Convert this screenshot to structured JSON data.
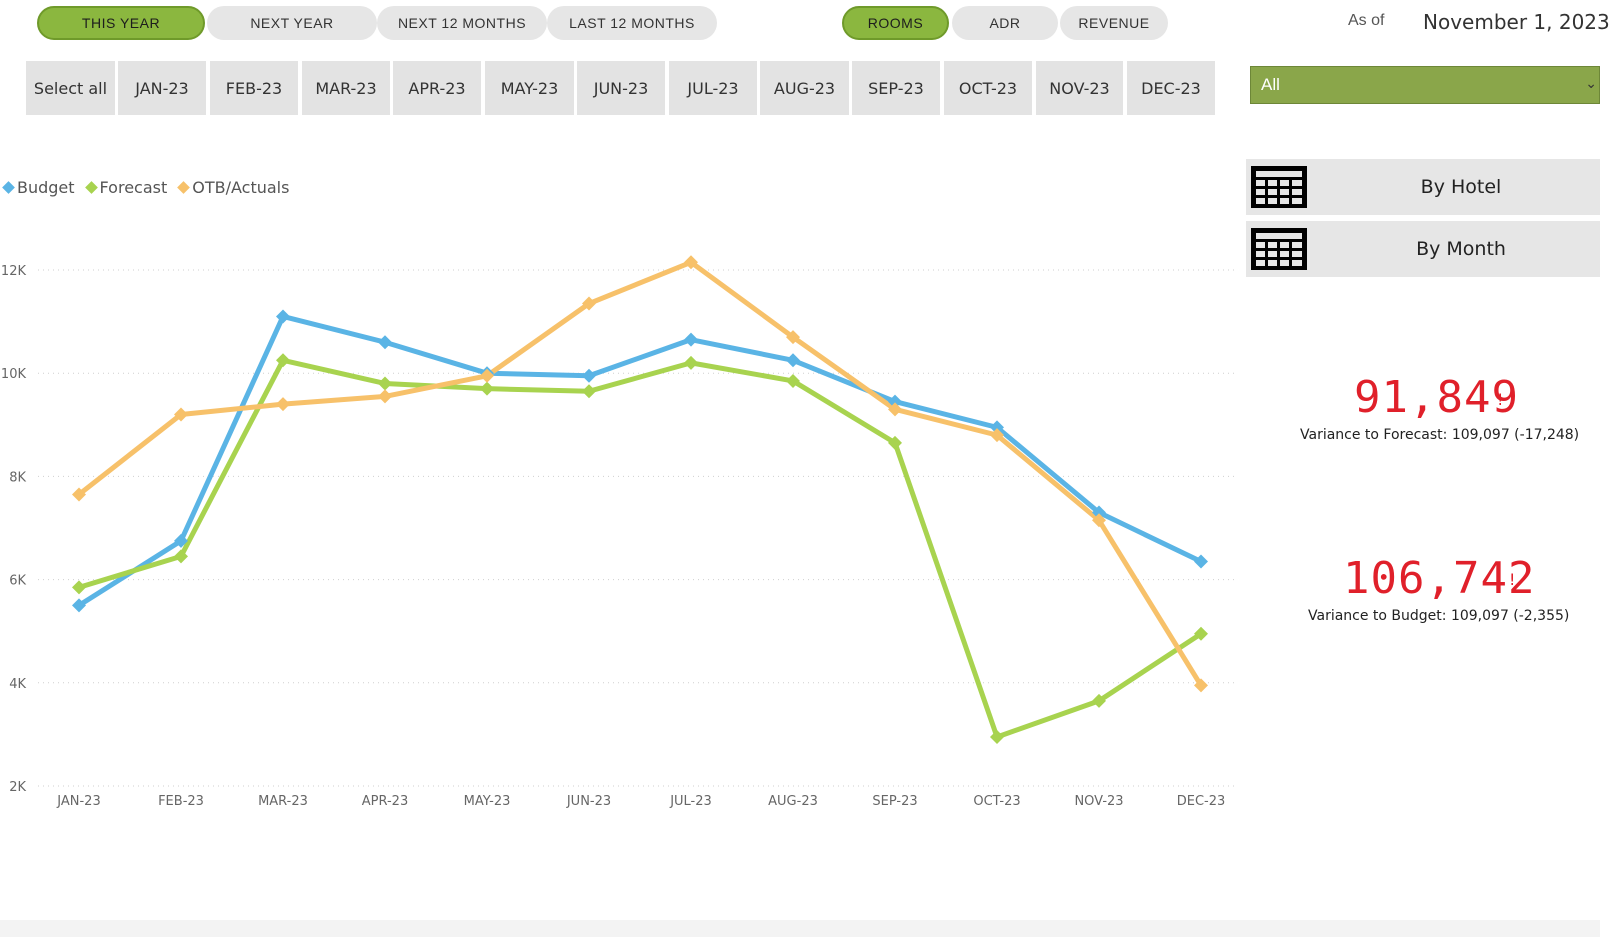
{
  "period_tabs": [
    {
      "label": "THIS YEAR",
      "active": true
    },
    {
      "label": "NEXT YEAR",
      "active": false
    },
    {
      "label": "NEXT 12 MONTHS",
      "active": false
    },
    {
      "label": "LAST 12 MONTHS",
      "active": false
    }
  ],
  "metric_tabs": [
    {
      "label": "ROOMS",
      "active": true
    },
    {
      "label": "ADR",
      "active": false
    },
    {
      "label": "REVENUE",
      "active": false
    }
  ],
  "as_of": {
    "label": "As of",
    "date": "November 1, 2023"
  },
  "months_slicer": [
    "Select all",
    "JAN-23",
    "FEB-23",
    "MAR-23",
    "APR-23",
    "MAY-23",
    "JUN-23",
    "JUL-23",
    "AUG-23",
    "SEP-23",
    "OCT-23",
    "NOV-23",
    "DEC-23"
  ],
  "hotel_dropdown": {
    "value": "All"
  },
  "nav_buttons": [
    {
      "label": "By Hotel",
      "icon": "table-icon"
    },
    {
      "label": "By Month",
      "icon": "table-icon"
    }
  ],
  "kpis": [
    {
      "value": "91,849",
      "mark": "!",
      "subtitle": "Variance to Forecast: 109,097 (-17,248)"
    },
    {
      "value": "106,742",
      "mark": "!",
      "subtitle": "Variance to Budget: 109,097 (-2,355)"
    }
  ],
  "colors": {
    "budget": "#5ab4e5",
    "forecast": "#a8d34f",
    "otb": "#f7c16a",
    "accent": "#8bb73f",
    "kpi": "#e0202a"
  },
  "chart_data": {
    "type": "line",
    "categories": [
      "JAN-23",
      "FEB-23",
      "MAR-23",
      "APR-23",
      "MAY-23",
      "JUN-23",
      "JUL-23",
      "AUG-23",
      "SEP-23",
      "OCT-23",
      "NOV-23",
      "DEC-23"
    ],
    "series": [
      {
        "name": "Budget",
        "color": "#5ab4e5",
        "values": [
          5500,
          6750,
          11100,
          10600,
          10000,
          9950,
          10650,
          10250,
          9450,
          8950,
          7300,
          6350
        ]
      },
      {
        "name": "Forecast",
        "color": "#a8d34f",
        "values": [
          5850,
          6450,
          10250,
          9800,
          9700,
          9650,
          10200,
          9850,
          8650,
          2950,
          3650,
          4950
        ]
      },
      {
        "name": "OTB/Actuals",
        "color": "#f7c16a",
        "values": [
          7650,
          9200,
          9400,
          9550,
          9950,
          11350,
          12150,
          10700,
          9300,
          8800,
          7150,
          3950
        ]
      }
    ],
    "ylim": [
      2000,
      12000
    ],
    "yticks": [
      2000,
      4000,
      6000,
      8000,
      10000,
      12000
    ],
    "ytick_labels": [
      "2K",
      "4K",
      "6K",
      "8K",
      "10K",
      "12K"
    ],
    "legend_position": "top-left",
    "grid": true
  }
}
